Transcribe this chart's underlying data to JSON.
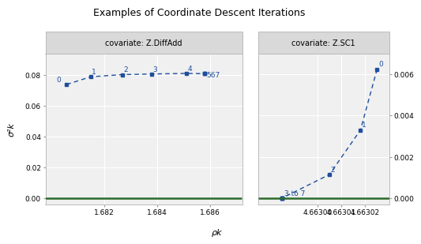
{
  "title": "Examples of Coordinate Descent Iterations",
  "xlabel": "ρk",
  "ylabel": "σ²k",
  "panel1_title": "covariate: Z.DiffAdd",
  "panel2_title": "covariate: Z.SC1",
  "p1_rho": [
    1.6806,
    1.6815,
    1.6827,
    1.6838,
    1.6851,
    1.6858,
    1.6858,
    1.6858
  ],
  "p1_sigma": [
    0.074,
    0.079,
    0.0804,
    0.0808,
    0.0812,
    0.081,
    0.081,
    0.081
  ],
  "p1_label_idx": [
    0,
    1,
    2,
    3,
    4,
    5
  ],
  "p1_label_txt": [
    "0",
    "1",
    "2",
    "3",
    "4",
    "567"
  ],
  "p2_rho": [
    4.663025,
    4.663018,
    4.663005,
    4.662985,
    4.662985,
    4.662985,
    4.662985,
    4.662985
  ],
  "p2_sigma": [
    0.00625,
    0.0033,
    0.00115,
    0.0,
    0.0,
    0.0,
    0.0,
    0.0
  ],
  "p2_label_idx": [
    0,
    1,
    2,
    3
  ],
  "p2_label_txt": [
    "0",
    "1",
    "2",
    "3 to 7"
  ],
  "panel1_xlim": [
    1.6798,
    1.6872
  ],
  "panel1_ylim": [
    -0.004,
    0.094
  ],
  "panel2_xlim": [
    4.662975,
    4.66303
  ],
  "panel2_ylim": [
    -0.0003,
    0.007
  ],
  "point_color": "#1f4e9c",
  "line_color": "#1f4e9c",
  "green_color": "#2d6a2d",
  "bg_header": "#d9d9d9",
  "bg_plot": "#f0f0f0",
  "grid_color": "#ffffff",
  "panel1_xticks": [
    1.682,
    1.684,
    1.686
  ],
  "panel1_yticks": [
    0.0,
    0.02,
    0.04,
    0.06,
    0.08
  ],
  "panel2_xticks": [
    4.663,
    4.66301,
    4.66302
  ],
  "panel2_yticks": [
    0.0,
    0.002,
    0.004,
    0.006
  ]
}
